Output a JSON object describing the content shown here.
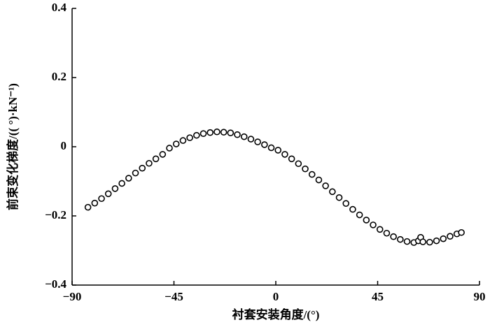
{
  "chart_data": {
    "type": "scatter",
    "x_label": "衬套安装角度/(°)",
    "y_label": "前束变化梯度/(( °)·kN⁻¹)",
    "xlim": [
      -90,
      90
    ],
    "ylim": [
      -0.4,
      0.4
    ],
    "xticks": [
      {
        "value": -90,
        "label": "−90"
      },
      {
        "value": -45,
        "label": "−45"
      },
      0,
      45,
      90
    ],
    "yticks": [
      {
        "value": -0.4,
        "label": "−0.4"
      },
      {
        "value": -0.2,
        "label": "−0.2"
      },
      0,
      0.2,
      0.4
    ],
    "x": [
      -83,
      -80,
      -77,
      -74,
      -71,
      -68,
      -65,
      -62,
      -59,
      -56,
      -53,
      -50,
      -47,
      -44,
      -41,
      -38,
      -35,
      -32,
      -29,
      -26,
      -23,
      -20,
      -17,
      -14,
      -11,
      -8,
      -5,
      -2,
      1,
      4,
      7,
      10,
      13,
      16,
      19,
      22,
      25,
      28,
      31,
      34,
      37,
      40,
      43,
      46,
      49,
      52,
      55,
      58,
      61,
      63,
      64,
      65,
      68,
      71,
      74,
      77,
      80,
      82
    ],
    "series": [
      {
        "color": "#000000",
        "values": [
          -0.175,
          -0.163,
          -0.15,
          -0.136,
          -0.121,
          -0.106,
          -0.091,
          -0.076,
          -0.062,
          -0.048,
          -0.035,
          -0.022,
          -0.004,
          0.008,
          0.018,
          0.026,
          0.033,
          0.038,
          0.041,
          0.043,
          0.042,
          0.04,
          0.035,
          0.029,
          0.022,
          0.014,
          0.006,
          -0.003,
          -0.01,
          -0.022,
          -0.035,
          -0.049,
          -0.064,
          -0.08,
          -0.096,
          -0.113,
          -0.13,
          -0.147,
          -0.164,
          -0.181,
          -0.197,
          -0.212,
          -0.226,
          -0.239,
          -0.25,
          -0.26,
          -0.268,
          -0.274,
          -0.277,
          -0.272,
          -0.262,
          -0.275,
          -0.276,
          -0.272,
          -0.266,
          -0.259,
          -0.252,
          -0.248
        ]
      }
    ]
  }
}
